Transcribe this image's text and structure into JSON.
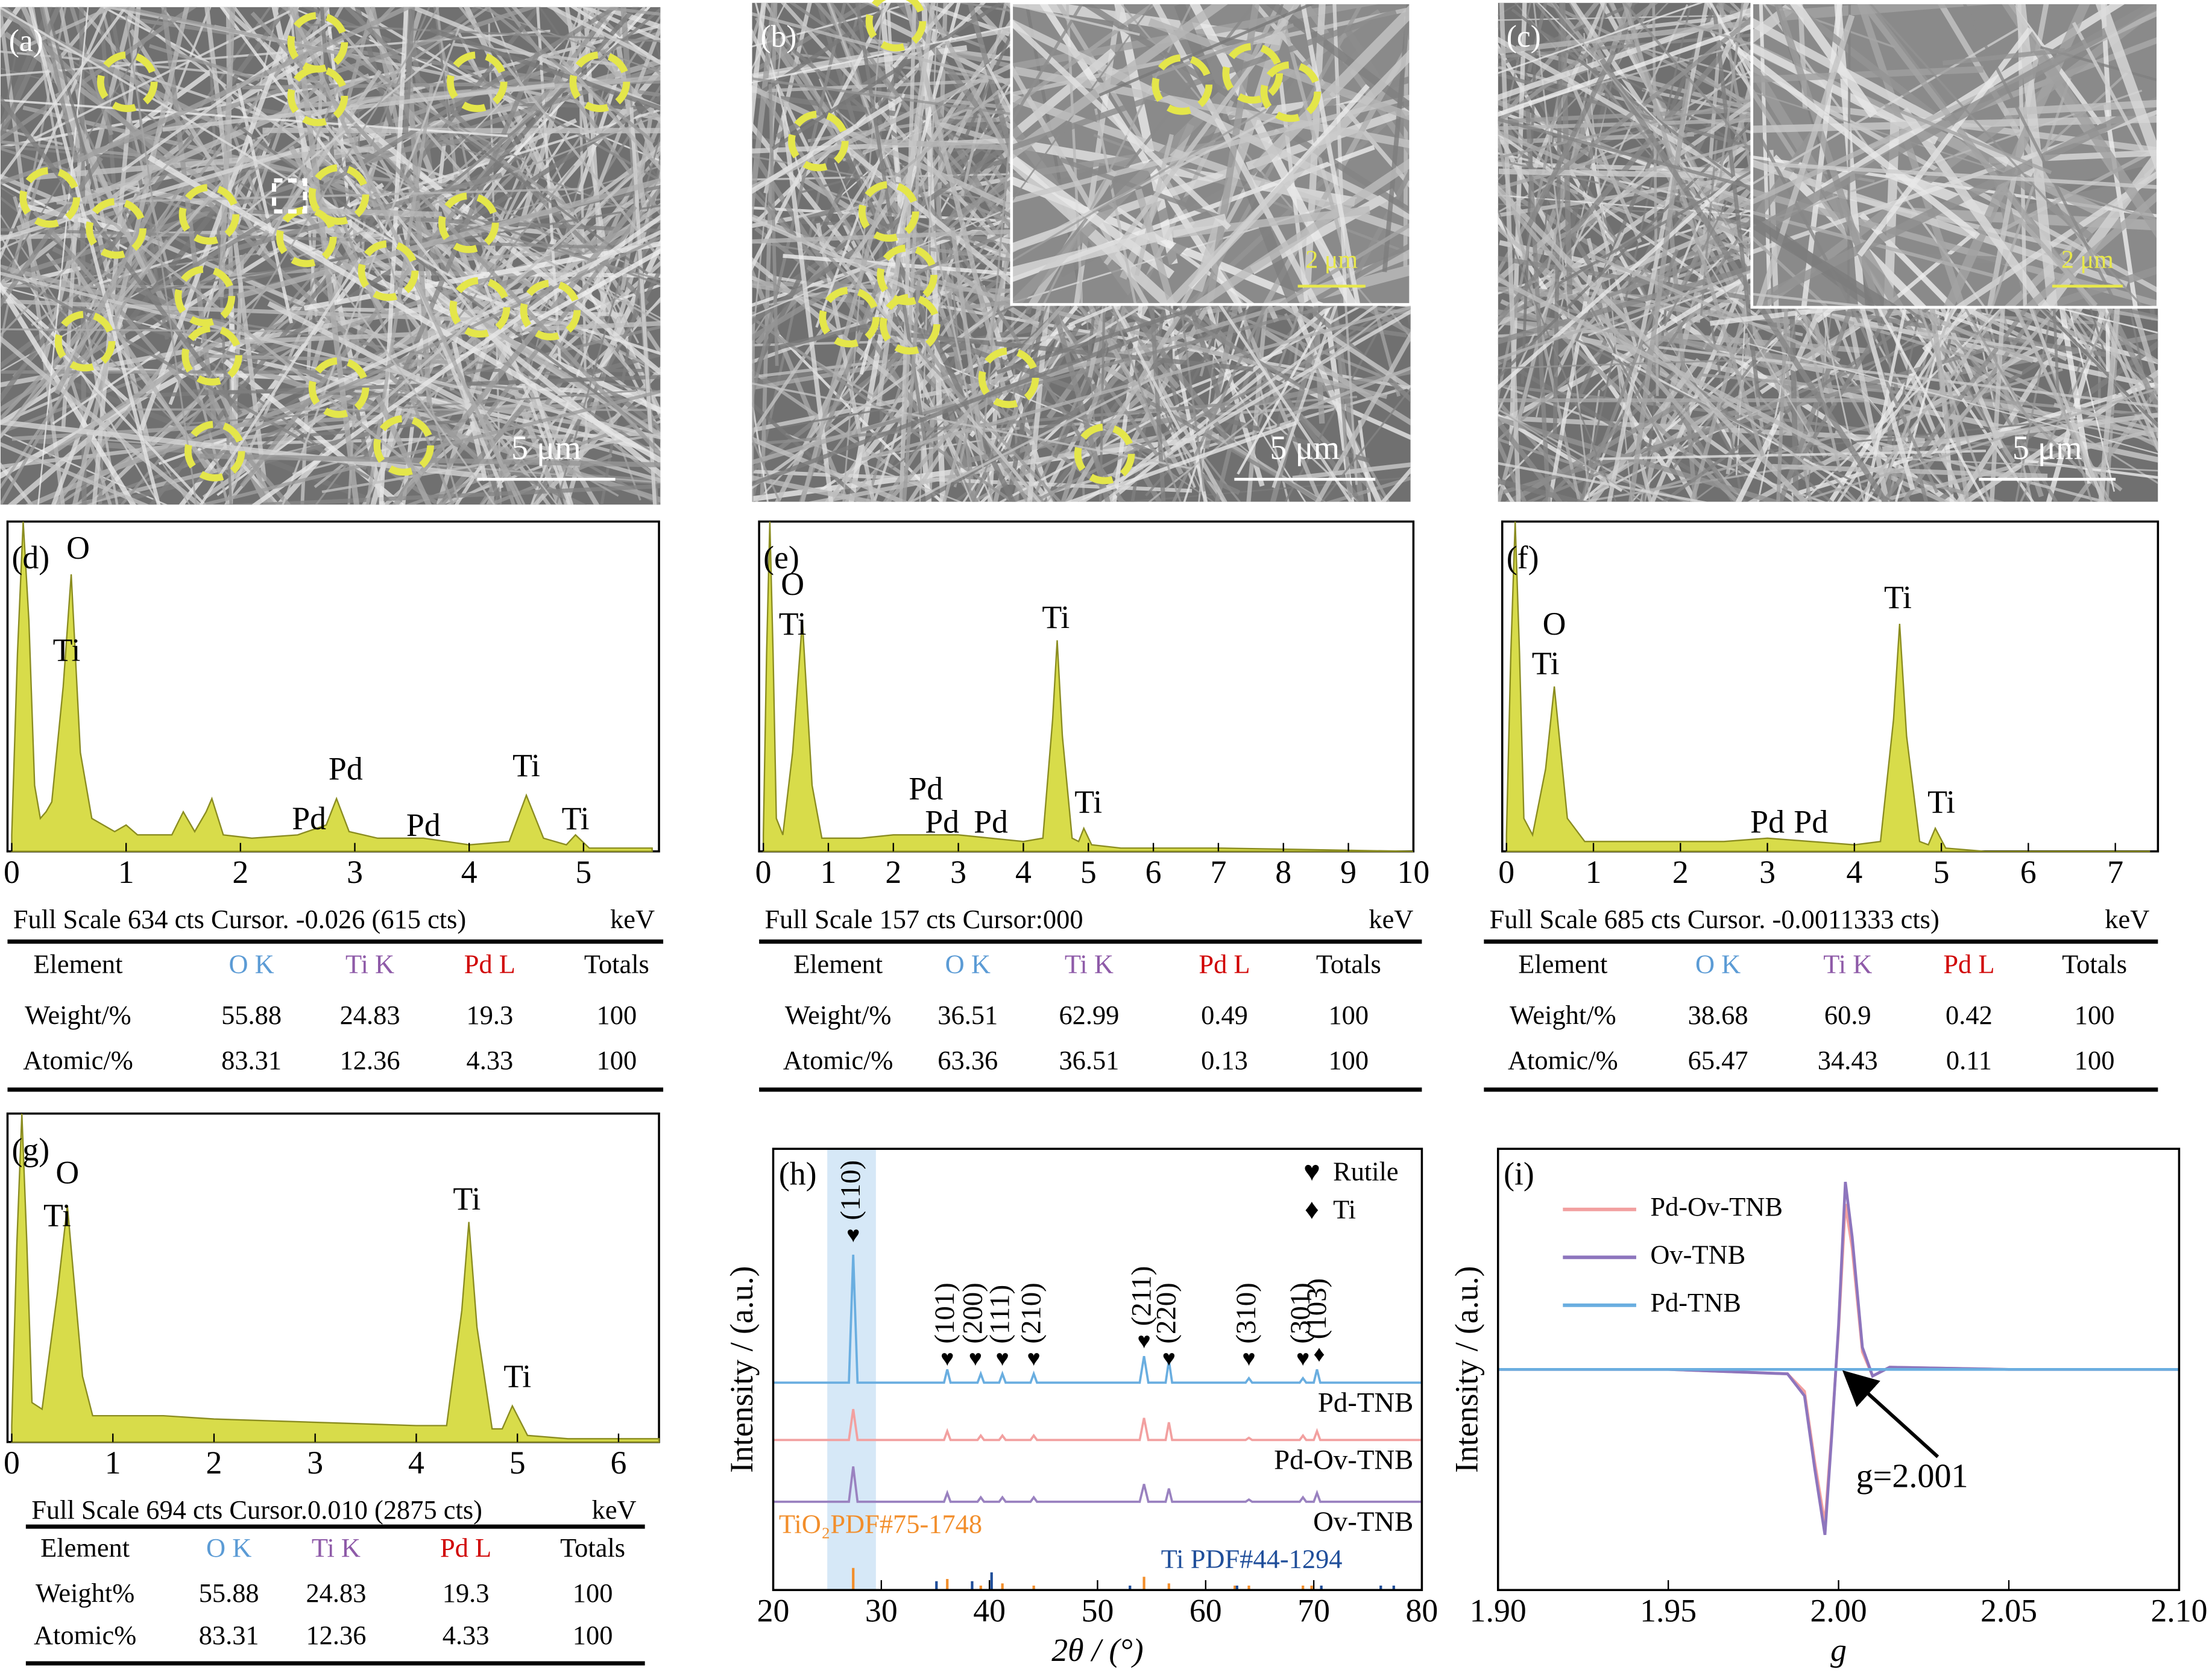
{
  "images": [
    {
      "label": "(a)",
      "scale_bar": "5 μm"
    },
    {
      "label": "(b)",
      "scale_bar": "5 μm",
      "inset_scale_bar": "2 μm"
    },
    {
      "label": "(c)",
      "scale_bar": "5 μm",
      "inset_scale_bar": "2 μm"
    }
  ],
  "chart_data": [
    {
      "type": "area",
      "label": "(d)",
      "xlabel": "keV",
      "color": "#d8dc4a",
      "footer": "Full Scale 634 cts Cursor. -0.026 (615 cts)",
      "xlim": [
        0,
        5.66
      ],
      "xticks": [
        0,
        1,
        2,
        3,
        4,
        5
      ],
      "ylim": [
        0,
        100
      ],
      "x": [
        0,
        0.05,
        0.1,
        0.15,
        0.2,
        0.25,
        0.3,
        0.35,
        0.45,
        0.52,
        0.6,
        0.7,
        0.9,
        1.0,
        1.1,
        1.4,
        1.5,
        1.6,
        1.7,
        1.75,
        1.85,
        2.1,
        2.5,
        2.75,
        2.84,
        2.95,
        3.2,
        3.6,
        4.0,
        4.35,
        4.5,
        4.65,
        4.85,
        4.93,
        5.05,
        5.6
      ],
      "values": [
        5,
        60,
        100,
        70,
        20,
        10,
        12,
        15,
        50,
        84,
        30,
        10,
        6,
        8,
        5,
        5,
        12,
        6,
        12,
        16,
        5,
        4,
        5,
        8,
        16,
        6,
        4,
        4,
        2,
        3,
        17,
        4,
        2,
        5,
        1,
        1
      ],
      "annotations": [
        {
          "text": "O",
          "x": 0.58,
          "y": 91
        },
        {
          "text": "Ti",
          "x": 0.48,
          "y": 60
        },
        {
          "text": "Pd",
          "x": 2.92,
          "y": 24
        },
        {
          "text": "Pd",
          "x": 2.6,
          "y": 9
        },
        {
          "text": "Pd",
          "x": 3.6,
          "y": 7
        },
        {
          "text": "Ti",
          "x": 4.5,
          "y": 25
        },
        {
          "text": "Ti",
          "x": 4.93,
          "y": 9
        }
      ],
      "table": {
        "header": [
          "Element",
          "O K",
          "Ti K",
          "Pd L",
          "Totals"
        ],
        "header_colors": [
          "#000000",
          "#5b9bd5",
          "#8e5aa8",
          "#d00000",
          "#000000"
        ],
        "rows": [
          [
            "Weight/%",
            55.88,
            24.83,
            19.3,
            100
          ],
          [
            "Atomic/%",
            83.31,
            12.36,
            4.33,
            100
          ]
        ]
      }
    },
    {
      "type": "area",
      "label": "(e)",
      "xlabel": "keV",
      "color": "#d8dc4a",
      "footer": "Full Scale 157 cts Cursor:000",
      "xlim": [
        0,
        10
      ],
      "xticks": [
        0,
        1,
        2,
        3,
        4,
        5,
        6,
        7,
        8,
        9,
        10
      ],
      "ylim": [
        0,
        100
      ],
      "x": [
        0,
        0.05,
        0.1,
        0.15,
        0.2,
        0.3,
        0.45,
        0.6,
        0.75,
        0.9,
        1.5,
        2.0,
        2.5,
        3.0,
        3.5,
        4.0,
        4.3,
        4.45,
        4.52,
        4.6,
        4.75,
        4.85,
        4.93,
        5.05,
        5.5,
        7,
        10
      ],
      "values": [
        5,
        60,
        100,
        60,
        10,
        5,
        30,
        70,
        20,
        4,
        4,
        5,
        5,
        5,
        4,
        3,
        4,
        40,
        64,
        35,
        4,
        3,
        7,
        2,
        1,
        1,
        0
      ],
      "annotations": [
        {
          "text": "O",
          "x": 0.45,
          "y": 80
        },
        {
          "text": "Ti",
          "x": 0.45,
          "y": 68
        },
        {
          "text": "Ti",
          "x": 4.5,
          "y": 70
        },
        {
          "text": "Ti",
          "x": 5.0,
          "y": 14
        },
        {
          "text": "Pd",
          "x": 2.5,
          "y": 18
        },
        {
          "text": "Pd",
          "x": 2.75,
          "y": 8
        },
        {
          "text": "Pd",
          "x": 3.5,
          "y": 8
        }
      ],
      "table": {
        "header": [
          "Element",
          "O K",
          "Ti K",
          "Pd L",
          "Totals"
        ],
        "header_colors": [
          "#000000",
          "#5b9bd5",
          "#8e5aa8",
          "#d00000",
          "#000000"
        ],
        "rows": [
          [
            "Weight/%",
            36.51,
            62.99,
            0.49,
            100
          ],
          [
            "Atomic/%",
            63.36,
            36.51,
            0.13,
            100
          ]
        ]
      }
    },
    {
      "type": "area",
      "label": "(f)",
      "xlabel": "keV",
      "color": "#d8dc4a",
      "footer": "Full Scale 685 cts Cursor. -0.0011333 cts)",
      "xlim": [
        0,
        7.49
      ],
      "xticks": [
        0,
        1,
        2,
        3,
        4,
        5,
        6,
        7
      ],
      "ylim": [
        0,
        100
      ],
      "x": [
        0,
        0.05,
        0.1,
        0.15,
        0.2,
        0.3,
        0.45,
        0.55,
        0.7,
        0.9,
        1.5,
        2.0,
        2.5,
        3.0,
        3.5,
        4.0,
        4.3,
        4.45,
        4.52,
        4.6,
        4.75,
        4.85,
        4.93,
        5.05,
        5.5,
        7.4
      ],
      "values": [
        5,
        60,
        100,
        60,
        10,
        5,
        25,
        50,
        10,
        3,
        3,
        3,
        3,
        4,
        3,
        2,
        3,
        40,
        69,
        35,
        3,
        2,
        7,
        1,
        0,
        0
      ],
      "annotations": [
        {
          "text": "O",
          "x": 0.55,
          "y": 68
        },
        {
          "text": "Ti",
          "x": 0.45,
          "y": 56
        },
        {
          "text": "Ti",
          "x": 4.5,
          "y": 76
        },
        {
          "text": "Ti",
          "x": 5.0,
          "y": 14
        },
        {
          "text": "Pd",
          "x": 3.0,
          "y": 8
        },
        {
          "text": "Pd",
          "x": 3.5,
          "y": 8
        }
      ],
      "table": {
        "header": [
          "Element",
          "O K",
          "Ti K",
          "Pd L",
          "Totals"
        ],
        "header_colors": [
          "#000000",
          "#5b9bd5",
          "#8e5aa8",
          "#d00000",
          "#000000"
        ],
        "rows": [
          [
            "Weight/%",
            38.68,
            60.9,
            0.42,
            100
          ],
          [
            "Atomic/%",
            65.47,
            34.43,
            0.11,
            100
          ]
        ]
      }
    },
    {
      "type": "area",
      "label": "(g)",
      "xlabel": "keV",
      "color": "#d8dc4a",
      "footer": "Full Scale 694 cts Cursor.0.010 (2875 cts)",
      "xlim": [
        0,
        6.4
      ],
      "xticks": [
        0,
        1,
        2,
        3,
        4,
        5,
        6
      ],
      "ylim": [
        0,
        100
      ],
      "x": [
        0,
        0.05,
        0.1,
        0.15,
        0.2,
        0.3,
        0.45,
        0.55,
        0.7,
        0.8,
        1.5,
        2.0,
        3.0,
        4.0,
        4.3,
        4.45,
        4.52,
        4.6,
        4.75,
        4.85,
        4.95,
        5.1,
        5.5,
        6.4
      ],
      "values": [
        5,
        60,
        100,
        60,
        12,
        10,
        45,
        72,
        20,
        8,
        8,
        7,
        6,
        5,
        5,
        40,
        67,
        35,
        4,
        4,
        11,
        2,
        1,
        1
      ],
      "annotations": [
        {
          "text": "O",
          "x": 0.55,
          "y": 81
        },
        {
          "text": "Ti",
          "x": 0.45,
          "y": 68
        },
        {
          "text": "Ti",
          "x": 4.5,
          "y": 73
        },
        {
          "text": "Ti",
          "x": 5.0,
          "y": 19
        }
      ],
      "table": {
        "header": [
          "Element",
          "O K",
          "Ti K",
          "Pd L",
          "Totals"
        ],
        "header_colors": [
          "#000000",
          "#5b9bd5",
          "#8e5aa8",
          "#d00000",
          "#000000"
        ],
        "rows": [
          [
            "Weight%",
            55.88,
            24.83,
            19.3,
            100
          ],
          [
            "Atomic%",
            83.31,
            12.36,
            4.33,
            100
          ]
        ]
      }
    },
    {
      "type": "xrd",
      "label": "(h)",
      "xlabel": "2θ / (°)",
      "ylabel": "Intensity / (a.u.)",
      "xlim": [
        20,
        80
      ],
      "xticks": [
        20,
        30,
        40,
        50,
        60,
        70,
        80
      ],
      "ylim": [
        0,
        100
      ],
      "highlight": [
        25,
        29.5
      ],
      "legend": [
        {
          "symbol": "♥",
          "name": "Rutile"
        },
        {
          "symbol": "♦",
          "name": "Ti"
        }
      ],
      "x": [
        20,
        27,
        27.4,
        27.8,
        35.8,
        36.1,
        36.4,
        38.9,
        39.2,
        39.5,
        40.9,
        41.2,
        41.5,
        43.8,
        44.1,
        44.4,
        53.9,
        54.3,
        54.7,
        56.3,
        56.6,
        56.9,
        63.7,
        64.0,
        64.3,
        68.7,
        69.0,
        69.3,
        70.0,
        70.3,
        70.6,
        80
      ],
      "series": [
        {
          "name": "Pd-TNB",
          "color": "#6aaee0",
          "values": [
            47,
            47,
            76,
            47,
            47,
            50,
            47,
            47,
            49,
            47,
            47,
            49,
            47,
            47,
            49,
            47,
            47,
            53,
            47,
            47,
            52,
            47,
            47,
            48,
            47,
            47,
            48,
            47,
            47,
            50,
            47,
            47
          ]
        },
        {
          "name": "Pd-Ov-TNB",
          "color": "#f2a0a0",
          "values": [
            34,
            34,
            41,
            34,
            34,
            36,
            34,
            34,
            35,
            34,
            34,
            35,
            34,
            34,
            35,
            34,
            34,
            39,
            34,
            34,
            38,
            34,
            34,
            34.5,
            34,
            34,
            35,
            34,
            34,
            36,
            34,
            34
          ]
        },
        {
          "name": "Ov-TNB",
          "color": "#9a82c0",
          "values": [
            20,
            20,
            28,
            20,
            20,
            22,
            20,
            20,
            21,
            20,
            20,
            21,
            20,
            20,
            21,
            20,
            20,
            24,
            20,
            20,
            23,
            20,
            20,
            20.5,
            20,
            20,
            21,
            20,
            20,
            22,
            20,
            20
          ]
        }
      ],
      "peak_labels": [
        {
          "label": "(110)",
          "symbol": "♥",
          "x": 27.4,
          "y": 80
        },
        {
          "label": "(101)",
          "symbol": "♥",
          "x": 36.1,
          "y": 52
        },
        {
          "label": "(200)",
          "symbol": "♥",
          "x": 38.7,
          "y": 52
        },
        {
          "label": "(111)",
          "symbol": "♥",
          "x": 41.2,
          "y": 52
        },
        {
          "label": "(210)",
          "symbol": "♥",
          "x": 44.1,
          "y": 52
        },
        {
          "label": "(211)",
          "symbol": "♥",
          "x": 54.3,
          "y": 56
        },
        {
          "label": "(220)",
          "symbol": "♥",
          "x": 56.6,
          "y": 52
        },
        {
          "label": "(310)",
          "symbol": "♥",
          "x": 64.0,
          "y": 52
        },
        {
          "label": "(301)",
          "symbol": "♥",
          "x": 69.0,
          "y": 52
        },
        {
          "label": "(103)",
          "symbol": "♦",
          "x": 70.5,
          "y": 53
        }
      ],
      "references": [
        {
          "name": "TiO₂PDF#75-1748",
          "color": "#f28e2b",
          "x": [
            27.4,
            36.1,
            39.2,
            41.2,
            44.1,
            54.3,
            56.6,
            62.7,
            64.0,
            69.0,
            69.8
          ],
          "values": [
            5,
            2.5,
            1,
            1.5,
            1,
            3,
            1.5,
            1,
            1,
            1,
            1
          ]
        },
        {
          "name": "Ti PDF#44-1294",
          "color": "#1f4e9a",
          "x": [
            35.1,
            38.4,
            40.2,
            53.0,
            62.9,
            70.7,
            76.2,
            77.4
          ],
          "values": [
            2,
            2,
            4,
            1,
            1,
            1,
            1,
            1
          ]
        }
      ]
    },
    {
      "type": "line",
      "label": "(i)",
      "xlabel": "g",
      "ylabel": "Intensity / (a.u.)",
      "legend": "upper left",
      "xlim": [
        1.9,
        2.1
      ],
      "xticks": [
        {
          "value": 1.9,
          "label": "1.90"
        },
        {
          "value": 1.95,
          "label": "1.95"
        },
        {
          "value": 2.0,
          "label": "2.00"
        },
        {
          "value": 2.05,
          "label": "2.05"
        },
        {
          "value": 2.1,
          "label": "2.10"
        }
      ],
      "ylim": [
        -100,
        100
      ],
      "x": [
        1.9,
        1.95,
        1.985,
        1.99,
        1.993,
        1.996,
        1.998,
        2.0,
        2.002,
        2.004,
        2.007,
        2.01,
        2.015,
        2.05,
        2.1
      ],
      "series": [
        {
          "name": "Pd-Ov-TNB",
          "color": "#f2a0a0",
          "values": [
            0,
            0,
            -2,
            -10,
            -42,
            -70,
            -28,
            18,
            75,
            55,
            8,
            -3,
            1,
            0,
            0
          ]
        },
        {
          "name": "Ov-TNB",
          "color": "#8d75bd",
          "values": [
            0,
            0,
            -2,
            -12,
            -45,
            -75,
            -30,
            20,
            85,
            60,
            10,
            -3,
            1,
            0,
            0
          ]
        },
        {
          "name": "Pd-TNB",
          "color": "#6aaee0",
          "values": [
            0,
            0,
            0,
            0,
            0,
            0,
            0,
            0,
            0,
            0,
            0,
            0,
            0,
            0,
            0
          ]
        }
      ],
      "annotation": {
        "text": "g=2.001",
        "x": 2.001,
        "y": 0
      }
    }
  ]
}
